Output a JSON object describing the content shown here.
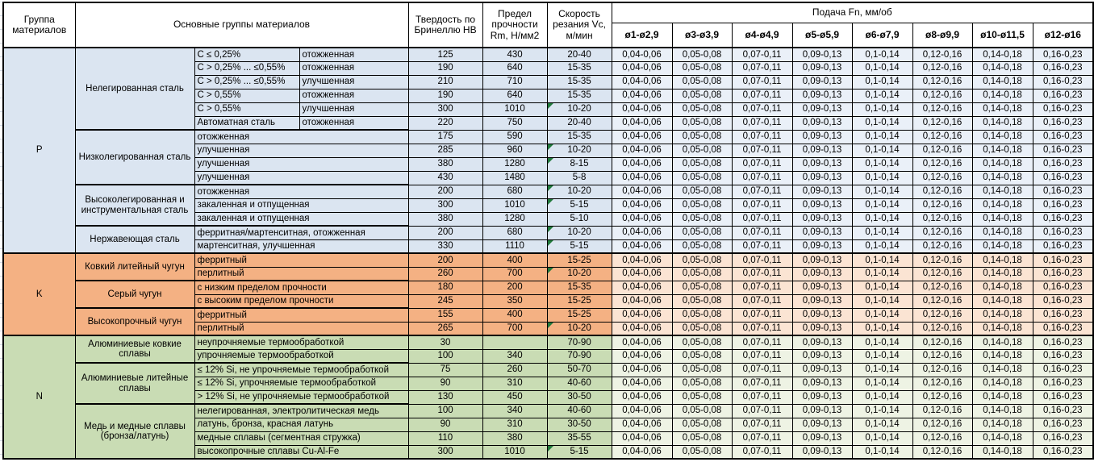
{
  "header": {
    "group": "Группа материалов",
    "main_groups": "Основные группы материалов",
    "hardness": "Твердость по Бринеллю HB",
    "strength": "Предел прочности Rm, Н/мм2",
    "speed": "Скорость резания Vc, м/мин",
    "feed_title": "Подача Fn, мм/об",
    "feed_cols": [
      "ø1-ø2,9",
      "ø3-ø3,9",
      "ø4-ø4,9",
      "ø5-ø5,9",
      "ø6-ø7,9",
      "ø8-ø9,9",
      "ø10-ø11,5",
      "ø12-ø16"
    ]
  },
  "feed_values": [
    "0,04-0,06",
    "0,05-0,08",
    "0,07-0,11",
    "0,09-0,13",
    "0,1-0,14",
    "0,12-0,16",
    "0,14-0,18",
    "0,16-0,23"
  ],
  "flag_color": "#217a3c",
  "groups": [
    {
      "code": "P",
      "color": "#dbe5f1",
      "feed_color": "#eaf0f8",
      "subgroups": [
        {
          "name": "Нелегированная сталь",
          "rows": [
            {
              "spec": "C ≤ 0,25%",
              "state": "отожженная",
              "hb": "125",
              "rm": "430",
              "vc": "20-40",
              "flag": false
            },
            {
              "spec": "C > 0,25% ... ≤0,55%",
              "state": "отожженная",
              "hb": "190",
              "rm": "640",
              "vc": "15-35",
              "flag": false
            },
            {
              "spec": "C > 0,25% ... ≤0,55%",
              "state": "улучшенная",
              "hb": "210",
              "rm": "710",
              "vc": "15-35",
              "flag": false
            },
            {
              "spec": "C > 0,55%",
              "state": "отожженная",
              "hb": "190",
              "rm": "640",
              "vc": "15-35",
              "flag": false
            },
            {
              "spec": "C > 0,55%",
              "state": "улучшенная",
              "hb": "300",
              "rm": "1010",
              "vc": "10-20",
              "flag": true
            },
            {
              "spec": "Автоматная сталь",
              "state": "отожженная",
              "hb": "220",
              "rm": "750",
              "vc": "20-40",
              "flag": false
            }
          ]
        },
        {
          "name": "Низколегированная сталь",
          "rows": [
            {
              "desc": "отожженная",
              "hb": "175",
              "rm": "590",
              "vc": "15-35",
              "flag": false
            },
            {
              "desc": "улучшенная",
              "hb": "285",
              "rm": "960",
              "vc": "10-20",
              "flag": true
            },
            {
              "desc": "улучшенная",
              "hb": "380",
              "rm": "1280",
              "vc": "8-15",
              "flag": true
            },
            {
              "desc": "улучшенная",
              "hb": "430",
              "rm": "1480",
              "vc": "5-8",
              "flag": false
            }
          ]
        },
        {
          "name": "Высоколегированная и инструментальная сталь",
          "rows": [
            {
              "desc": "отожженная",
              "hb": "200",
              "rm": "680",
              "vc": "10-20",
              "flag": true
            },
            {
              "desc": "закаленная и отпущенная",
              "hb": "300",
              "rm": "1010",
              "vc": "5-15",
              "flag": true
            },
            {
              "desc": "закаленная и отпущенная",
              "hb": "380",
              "rm": "1280",
              "vc": "5-10",
              "flag": false
            }
          ]
        },
        {
          "name": "Нержавеющая сталь",
          "rows": [
            {
              "desc": "ферритная/мартенситная, отожженная",
              "hb": "200",
              "rm": "680",
              "vc": "10-20",
              "flag": true
            },
            {
              "desc": "мартенситная, улучшенная",
              "hb": "330",
              "rm": "1110",
              "vc": "5-15",
              "flag": true
            }
          ]
        }
      ]
    },
    {
      "code": "K",
      "color": "#f4b183",
      "feed_color": "#fbe4d3",
      "subgroups": [
        {
          "name": "Ковкий литейный чугун",
          "rows": [
            {
              "desc": "ферритный",
              "hb": "200",
              "rm": "400",
              "vc": "15-25",
              "flag": false
            },
            {
              "desc": "перлитный",
              "hb": "260",
              "rm": "700",
              "vc": "10-20",
              "flag": true
            }
          ]
        },
        {
          "name": "Серый чугун",
          "rows": [
            {
              "desc": "с низким пределом прочности",
              "hb": "180",
              "rm": "200",
              "vc": "15-35",
              "flag": false
            },
            {
              "desc": "с высоким пределом прочности",
              "hb": "245",
              "rm": "350",
              "vc": "15-25",
              "flag": false
            }
          ]
        },
        {
          "name": "Высокопрочный чугун",
          "rows": [
            {
              "desc": "ферритный",
              "hb": "155",
              "rm": "400",
              "vc": "15-25",
              "flag": false
            },
            {
              "desc": "перлитный",
              "hb": "265",
              "rm": "700",
              "vc": "10-20",
              "flag": true
            }
          ]
        }
      ]
    },
    {
      "code": "N",
      "color": "#c9dcb4",
      "feed_color": "#eef3e4",
      "subgroups": [
        {
          "name": "Алюминиевые ковкие сплавы",
          "rows": [
            {
              "desc": "неупрочняемые термообработкой",
              "hb": "30",
              "rm": "",
              "vc": "70-90",
              "flag": false
            },
            {
              "desc": "упрочняемые термообработкой",
              "hb": "100",
              "rm": "340",
              "vc": "70-90",
              "flag": false
            }
          ]
        },
        {
          "name": "Алюминиевые литейные сплавы",
          "rows": [
            {
              "desc": "≤ 12% Si, не упрочняемые термообработкой",
              "hb": "75",
              "rm": "260",
              "vc": "50-70",
              "flag": false
            },
            {
              "desc": "≤ 12% Si, упрочняемые термообработкой",
              "hb": "90",
              "rm": "310",
              "vc": "40-60",
              "flag": false
            },
            {
              "desc": "> 12% Si, не упрочняемые термообработкой",
              "hb": "130",
              "rm": "450",
              "vc": "30-50",
              "flag": false
            }
          ]
        },
        {
          "name": "Медь и медные сплавы (бронза/латунь)",
          "rows": [
            {
              "desc": "нелегированная, электролитическая медь",
              "hb": "100",
              "rm": "340",
              "vc": "40-60",
              "flag": false
            },
            {
              "desc": "латунь, бронза, красная латунь",
              "hb": "90",
              "rm": "310",
              "vc": "30-50",
              "flag": false
            },
            {
              "desc": "медные сплавы (сегментная стружка)",
              "hb": "110",
              "rm": "380",
              "vc": "35-55",
              "flag": false
            },
            {
              "desc": "высокопрочные сплавы Cu-Al-Fe",
              "hb": "300",
              "rm": "1010",
              "vc": "5-15",
              "flag": true
            }
          ]
        }
      ]
    }
  ]
}
